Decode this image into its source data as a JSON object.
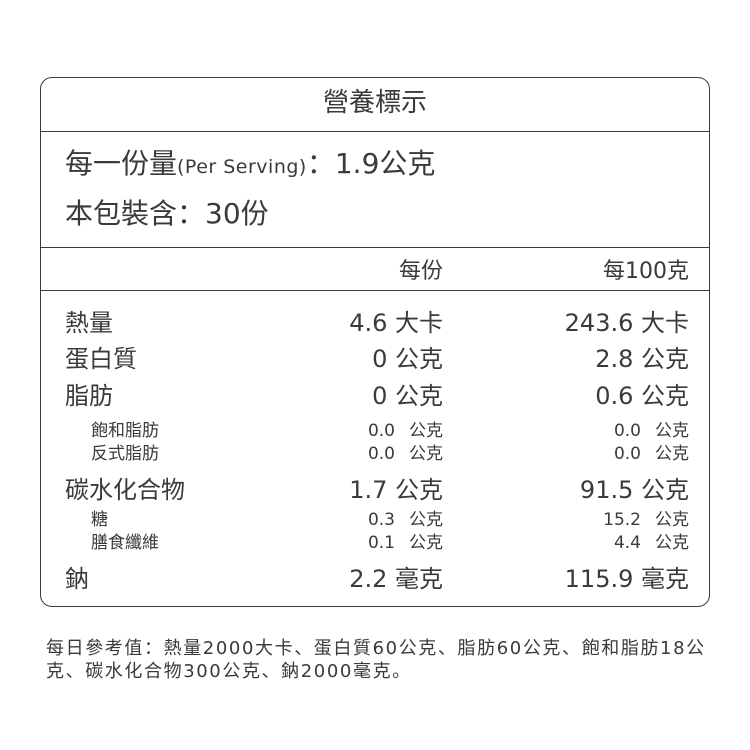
{
  "title": "營養標示",
  "serving": {
    "serving_size_label": "每一份量",
    "serving_size_en": "(Per Serving)",
    "serving_size_value": "：1.9公克",
    "servings_label": "本包裝含：30份"
  },
  "columns": {
    "per_serving": "每份",
    "per_100g": "每100克"
  },
  "rows": [
    {
      "label": "熱量",
      "per_serving": "4.6 大卡",
      "per_100g": "243.6 大卡"
    },
    {
      "label": "蛋白質",
      "per_serving": "0 公克",
      "per_100g": "2.8 公克"
    },
    {
      "label": "脂肪",
      "per_serving": "0 公克",
      "per_100g": "0.6 公克"
    },
    {
      "label": "飽和脂肪",
      "per_serving": "0.0",
      "per_serving_unit": "公克",
      "per_100g": "0.0",
      "per_100g_unit": "公克"
    },
    {
      "label": "反式脂肪",
      "per_serving": "0.0",
      "per_serving_unit": "公克",
      "per_100g": "0.0",
      "per_100g_unit": "公克"
    },
    {
      "label": "碳水化合物",
      "per_serving": "1.7 公克",
      "per_100g": "91.5 公克"
    },
    {
      "label": "糖",
      "per_serving": "0.3",
      "per_serving_unit": "公克",
      "per_100g": "15.2",
      "per_100g_unit": "公克"
    },
    {
      "label": "膳食纖維",
      "per_serving": "0.1",
      "per_serving_unit": "公克",
      "per_100g": "4.4",
      "per_100g_unit": "公克"
    },
    {
      "label": "鈉",
      "per_serving": "2.2 毫克",
      "per_100g": "115.9 毫克"
    }
  ],
  "footer": "每日參考值：熱量2000大卡、蛋白質60公克、脂肪60公克、飽和脂肪18公克、碳水化合物300公克、鈉2000毫克。"
}
